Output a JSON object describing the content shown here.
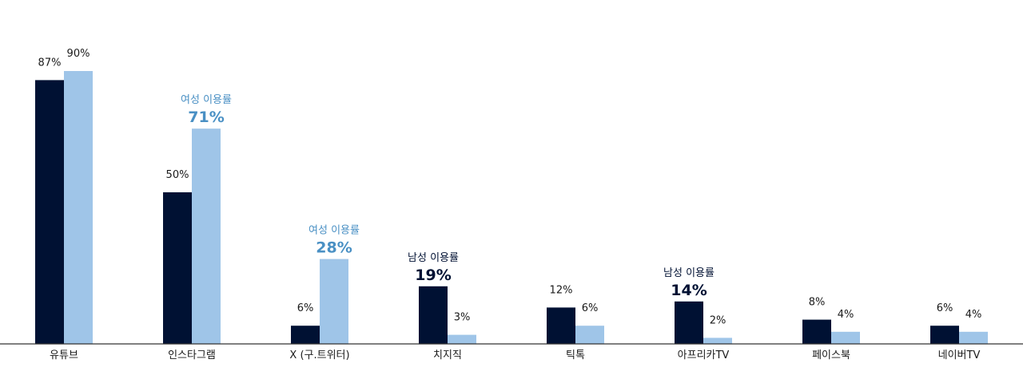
{
  "chart_data": {
    "type": "bar",
    "categories": [
      "유튜브",
      "인스타그램",
      "X (구.트위터)",
      "치지직",
      "틱톡",
      "아프리카TV",
      "페이스북",
      "네이버TV"
    ],
    "series": [
      {
        "values": [
          87,
          50,
          6,
          19,
          12,
          14,
          8,
          6
        ],
        "color": "#001133"
      },
      {
        "values": [
          90,
          71,
          28,
          3,
          6,
          2,
          4,
          4
        ],
        "color": "#9fc5e8"
      }
    ],
    "value_labels": [
      [
        "87%",
        "50%",
        "6%",
        "19%",
        "12%",
        "14%",
        "8%",
        "6%"
      ],
      [
        "90%",
        "71%",
        "28%",
        "3%",
        "6%",
        "2%",
        "4%",
        "4%"
      ]
    ],
    "ylim": [
      0,
      100
    ],
    "highlights": [
      {
        "category_index": 1,
        "series_index": 1,
        "caption": "여성 이용률",
        "color": "#4a90c4"
      },
      {
        "category_index": 2,
        "series_index": 1,
        "caption": "여성 이용률",
        "color": "#4a90c4"
      },
      {
        "category_index": 3,
        "series_index": 0,
        "caption": "남성 이용률",
        "color": "#001133"
      },
      {
        "category_index": 5,
        "series_index": 0,
        "caption": "남성 이용률",
        "color": "#001133"
      }
    ],
    "axis_color": "#333333"
  }
}
